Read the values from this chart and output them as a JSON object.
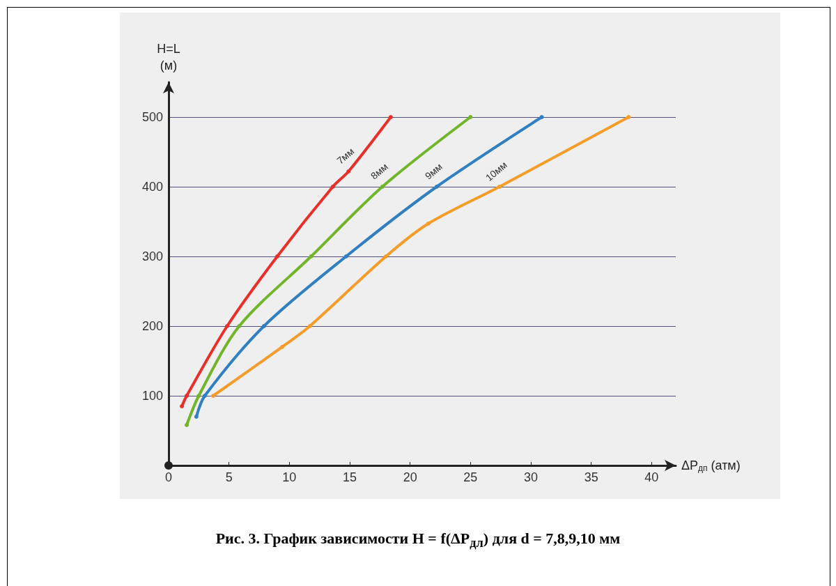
{
  "chart_data": {
    "type": "line",
    "title": "Рис. 3. График зависимости H = f(ΔP$_{дл}$) для d = 7,8,9,10 мм",
    "xlabel": "ΔP$_{дп}$ (атм)",
    "ylabel": "H=L\n(м)",
    "xlim": [
      0,
      42
    ],
    "ylim": [
      0,
      550
    ],
    "xticks": [
      0,
      5,
      10,
      15,
      20,
      25,
      30,
      35,
      40
    ],
    "yticks": [
      100,
      200,
      300,
      400,
      500
    ],
    "grid": "y",
    "legend": false,
    "marker": "circle",
    "line_style": "solid",
    "series": [
      {
        "name": "7мм",
        "color": "#e8302a",
        "x": [
          1.1,
          1.5,
          4.85,
          9.0,
          13.6,
          14.9,
          18.4
        ],
        "values": [
          85,
          100,
          200,
          300,
          400,
          422,
          500
        ]
      },
      {
        "name": "8мм",
        "color": "#72b52b",
        "x": [
          1.5,
          2.5,
          5.85,
          11.8,
          17.7,
          25.0
        ],
        "values": [
          58,
          100,
          200,
          300,
          400,
          500
        ]
      },
      {
        "name": "9мм",
        "color": "#2f7fc1",
        "x": [
          2.3,
          3.0,
          7.9,
          14.7,
          22.2,
          30.9
        ],
        "values": [
          70,
          100,
          200,
          300,
          400,
          500
        ]
      },
      {
        "name": "10мм",
        "color": "#f59c2a",
        "x": [
          3.7,
          9.4,
          11.7,
          18.0,
          21.5,
          27.4,
          38.1
        ],
        "values": [
          100,
          170,
          200,
          300,
          347,
          400,
          500
        ]
      }
    ]
  }
}
